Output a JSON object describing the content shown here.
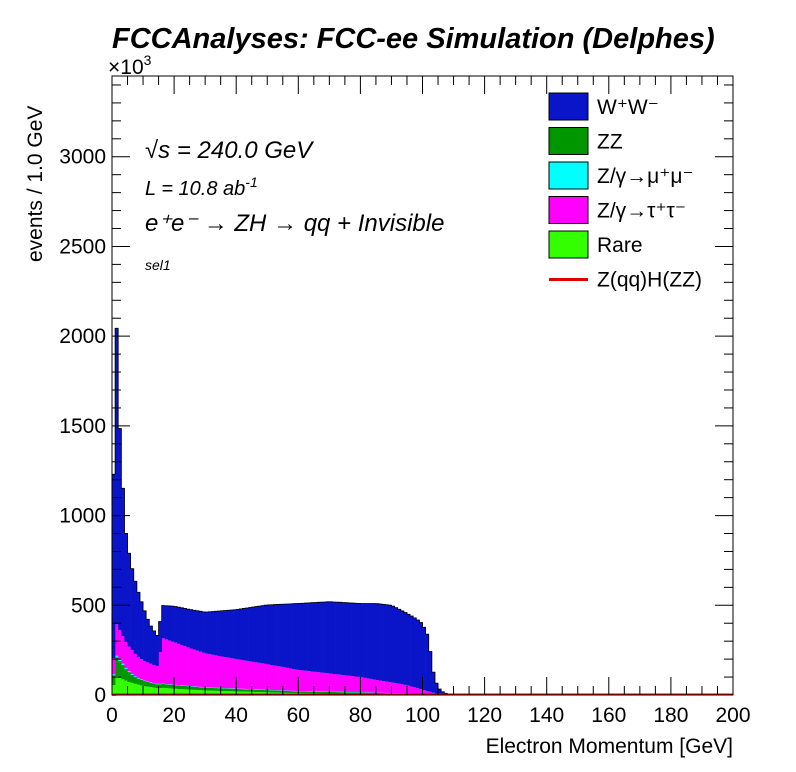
{
  "header": {
    "title": "FCCAnalyses: FCC-ee Simulation (Delphes)",
    "exponent_prefix": "×10",
    "exponent_power": "3"
  },
  "annotations": {
    "sqrt_symbol": "√s",
    "energy": " = 240.0 GeV",
    "lumi_prefix": "L = 10.8 ab",
    "lumi_power": "-1",
    "process": "e⁺e⁻ → ZH → qq + Invisible",
    "selection": "sel1"
  },
  "legend": [
    {
      "label": "W⁺W⁻",
      "color": "#0a14c8",
      "kind": "box"
    },
    {
      "label": "ZZ",
      "color": "#009600",
      "kind": "box"
    },
    {
      "label": "Z/γ→μ⁺μ⁻",
      "color": "#00ffff",
      "kind": "box"
    },
    {
      "label": "Z/γ→τ⁺τ⁻",
      "color": "#ff00ff",
      "kind": "box"
    },
    {
      "label": "Rare",
      "color": "#33ff00",
      "kind": "box"
    },
    {
      "label": "Z(qq)H(ZZ)",
      "color": "#e00000",
      "kind": "line"
    }
  ],
  "chart_data": {
    "type": "area",
    "title": "FCCAnalyses: FCC-ee Simulation (Delphes)",
    "xlabel": "Electron Momentum [GeV]",
    "ylabel": "events / 1.0 GeV",
    "xlim": [
      0,
      200
    ],
    "ylim": [
      0,
      3450
    ],
    "y_scale_note": "×10³",
    "x_ticks": [
      0,
      20,
      40,
      60,
      80,
      100,
      120,
      140,
      160,
      180,
      200
    ],
    "y_ticks": [
      0,
      500,
      1000,
      1500,
      2000,
      2500,
      3000
    ],
    "stacked": true,
    "x_knots": [
      0,
      1,
      2,
      3,
      4,
      5,
      6,
      7,
      8,
      10,
      12,
      14,
      15,
      16,
      20,
      25,
      30,
      40,
      50,
      60,
      70,
      80,
      85,
      90,
      95,
      98,
      100,
      102,
      103,
      104,
      105,
      106,
      107,
      108,
      110,
      112,
      115,
      120,
      200
    ],
    "series": [
      {
        "name": "Rare",
        "color": "#33ff00",
        "values": [
          0,
          110,
          100,
          90,
          85,
          75,
          70,
          65,
          60,
          50,
          45,
          40,
          38,
          40,
          35,
          30,
          25,
          20,
          15,
          10,
          8,
          6,
          5,
          4,
          3,
          2,
          2,
          2,
          1,
          1,
          1,
          0,
          0,
          0,
          0,
          0,
          0,
          0,
          0
        ]
      },
      {
        "name": "ZZ",
        "color": "#009600",
        "values": [
          0,
          110,
          100,
          90,
          70,
          60,
          50,
          40,
          35,
          30,
          25,
          22,
          20,
          22,
          20,
          18,
          16,
          14,
          12,
          10,
          9,
          8,
          7,
          6,
          5,
          4,
          4,
          3,
          2,
          2,
          1,
          1,
          0,
          0,
          0,
          0,
          0,
          0,
          0
        ]
      },
      {
        "name": "Z/γ→μ⁺μ⁻",
        "color": "#00ffff",
        "values": [
          0,
          10,
          8,
          8,
          6,
          5,
          5,
          4,
          4,
          3,
          3,
          2,
          2,
          2,
          2,
          2,
          2,
          2,
          2,
          2,
          2,
          2,
          1,
          1,
          1,
          1,
          1,
          1,
          1,
          0,
          0,
          0,
          0,
          0,
          0,
          0,
          0,
          0,
          0
        ]
      },
      {
        "name": "Z/γ→τ⁺τ⁻",
        "color": "#ff00ff",
        "values": [
          0,
          180,
          170,
          155,
          150,
          140,
          135,
          130,
          120,
          110,
          105,
          100,
          100,
          255,
          238,
          212,
          189,
          164,
          143,
          118,
          101,
          84,
          72,
          59,
          46,
          33,
          23,
          14,
          11,
          7,
          5,
          3,
          2,
          1,
          0,
          0,
          0,
          0,
          0
        ]
      },
      {
        "name": "W⁺W⁻",
        "color": "#0a14c8",
        "values": [
          0,
          2050,
          1250,
          1000,
          650,
          560,
          480,
          430,
          380,
          300,
          220,
          180,
          160,
          180,
          200,
          215,
          230,
          276,
          330,
          370,
          400,
          410,
          425,
          430,
          400,
          385,
          367,
          300,
          150,
          80,
          35,
          20,
          10,
          6,
          3,
          2,
          1,
          0,
          0
        ]
      },
      {
        "name": "Z(qq)H(ZZ)",
        "color": "#e00000",
        "values": [
          0,
          3,
          3,
          3,
          3,
          3,
          3,
          3,
          3,
          3,
          3,
          3,
          3,
          3,
          3,
          3,
          3,
          3,
          3,
          3,
          3,
          3,
          3,
          3,
          3,
          3,
          3,
          3,
          3,
          3,
          3,
          3,
          3,
          3,
          3,
          3,
          3,
          3,
          3
        ]
      }
    ]
  }
}
